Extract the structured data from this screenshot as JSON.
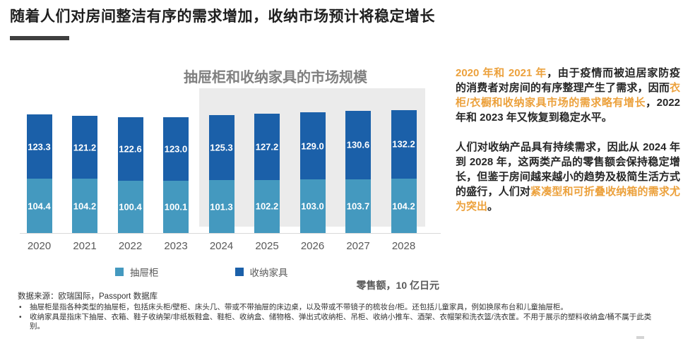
{
  "slide": {
    "title": "随着人们对房间整洁有序的需求增加，收纳市场预计将稳定增长"
  },
  "chart_data": {
    "type": "bar",
    "stacked": true,
    "title": "抽屉柜和收纳家具的市场规模",
    "unit_label": "零售额，10 亿日元",
    "categories": [
      "2020",
      "2021",
      "2022",
      "2023",
      "2024",
      "2025",
      "2026",
      "2027",
      "2028"
    ],
    "series": [
      {
        "name": "抽屉柜",
        "color": "#4499bf",
        "values": [
          104.4,
          104.2,
          100.4,
          100.1,
          101.3,
          102.2,
          103.0,
          103.7,
          104.2
        ]
      },
      {
        "name": "收纳家具",
        "color": "#1b60a9",
        "values": [
          123.3,
          121.2,
          122.6,
          123.0,
          125.3,
          127.2,
          129.0,
          130.6,
          132.2
        ]
      }
    ],
    "legend_position": "bottom",
    "grid": false,
    "forecast_categories": [
      "2024",
      "2025",
      "2026",
      "2027",
      "2028"
    ],
    "forecast_background_color": "#ebebeb",
    "value_labels_shown": true
  },
  "commentary": {
    "paragraph1": [
      {
        "text": "2020 年和 2021 年",
        "highlight": true
      },
      {
        "text": "，由于疫情而被迫居家防疫的消费者对房间的有序整理产生了需求，因而",
        "highlight": false
      },
      {
        "text": "衣柜/衣橱和收纳家具市场的需求略有增长",
        "highlight": true
      },
      {
        "text": "，2022 年和 2023 年又恢复到稳定水平。",
        "highlight": false
      }
    ],
    "paragraph2": [
      {
        "text": "人们对收纳产品具有持续需求，因此从 2024 年到 2028 年，这两类产品的零售额会保持稳定增长，但鉴于房间越来越小的趋势及极简生活方式的盛行，人们对",
        "highlight": false
      },
      {
        "text": "紧凑型和可折叠收纳箱的需求尤为突出",
        "highlight": true
      },
      {
        "text": "。",
        "highlight": false
      }
    ]
  },
  "footnotes": {
    "source": "数据来源：欧瑞国际，Passport 数据库",
    "bullets": [
      "抽屉柜是指各种类型的抽屉柜，包括床头柜/壁柜、床头几、带或不带抽屉的床边桌，以及带或不带镜子的梳妆台/柜。还包括儿童家具，例如换尿布台和儿童抽屉柜。",
      "收纳家具是指床下抽屉、衣箱、鞋子收纳架/非纸板鞋盒、鞋柜、收纳盒、储物格、弹出式收纳柜、吊柜、收纳小推车、酒架、衣帽架和洗衣篮/洗衣筐。不用于展示的塑料收纳盒/桶不属于此类别。"
    ]
  },
  "colors": {
    "title_text": "#1f1f1f",
    "title_underline": "#3f3f3f",
    "chart_title_text": "#808080",
    "axis_label_text": "#595959",
    "highlight_orange": "#eca13c",
    "bar_light_blue": "#4499bf",
    "bar_dark_blue": "#1b60a9",
    "forecast_gray": "#ebebeb"
  }
}
